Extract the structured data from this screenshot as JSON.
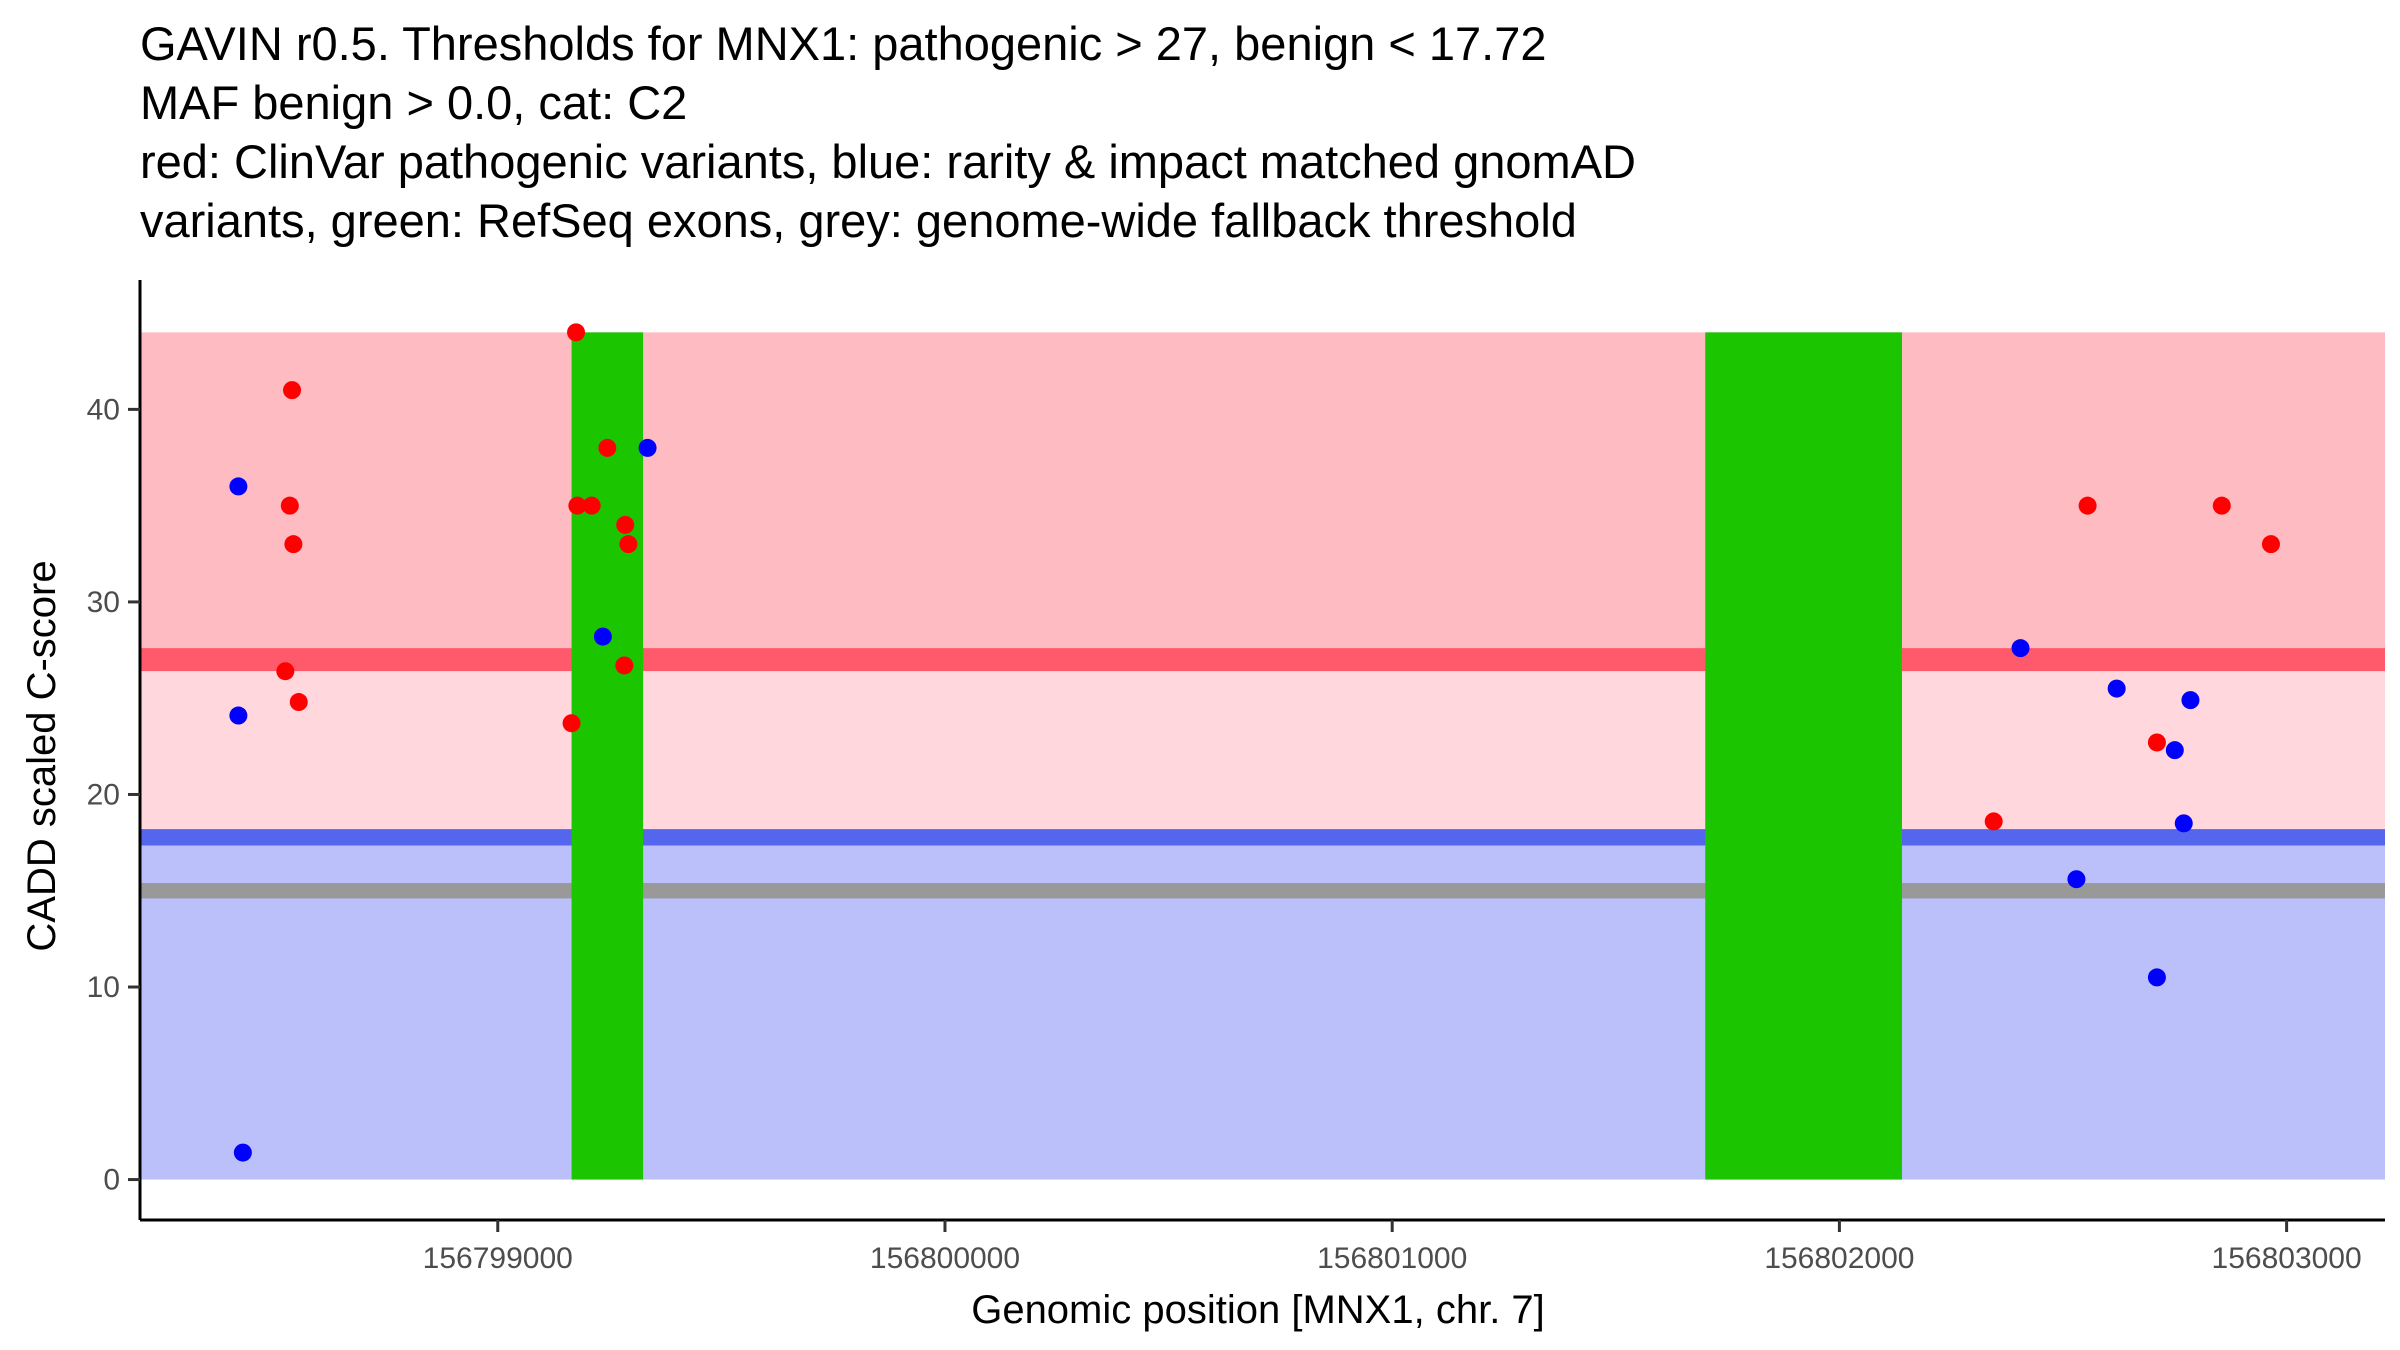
{
  "chart_data": {
    "type": "scatter",
    "title_lines": [
      "GAVIN r0.5. Thresholds for MNX1: pathogenic > 27, benign < 17.72",
      "MAF benign > 0.0, cat: C2",
      "red: ClinVar pathogenic variants, blue: rarity & impact matched gnomAD",
      "variants, green: RefSeq exons, grey: genome-wide fallback threshold"
    ],
    "xlabel": "Genomic position [MNX1, chr. 7]",
    "ylabel": "CADD scaled C-score",
    "xlim": [
      156798200,
      156803220
    ],
    "ylim": [
      -2.1,
      46.2
    ],
    "x_ticks": [
      156799000,
      156800000,
      156801000,
      156802000,
      156803000
    ],
    "x_tick_labels": [
      "156799000",
      "156800000",
      "156801000",
      "156802000",
      "156803000"
    ],
    "y_ticks": [
      0,
      10,
      20,
      30,
      40
    ],
    "y_tick_labels": [
      "0",
      "10",
      "20",
      "30",
      "40"
    ],
    "x_range_shaded": [
      156798200,
      156803220
    ],
    "bands": [
      {
        "name": "pathogenic-region",
        "y0": 27,
        "y1": 44,
        "color": "#ffbbc2"
      },
      {
        "name": "pathogenic-threshold",
        "y0": 26.4,
        "y1": 27.6,
        "color": "#ff5a6c"
      },
      {
        "name": "intermediate-region",
        "y0": 17.72,
        "y1": 26.4,
        "color": "#ffd7dc"
      },
      {
        "name": "benign-threshold",
        "y0": 17.35,
        "y1": 18.2,
        "color": "#5566ee"
      },
      {
        "name": "benign-region",
        "y0": 0,
        "y1": 17.35,
        "color": "#bbc0fb"
      },
      {
        "name": "fallback-threshold",
        "y0": 14.6,
        "y1": 15.4,
        "color": "#999999"
      }
    ],
    "exons": [
      {
        "start": 156799165,
        "end": 156799325,
        "color": "#1bc600"
      },
      {
        "start": 156801700,
        "end": 156802140,
        "color": "#1bc600"
      }
    ],
    "exon_y_range": [
      0,
      44
    ],
    "series": [
      {
        "name": "ClinVar pathogenic variants",
        "color": "#ff0000",
        "points": [
          {
            "x": 156798540,
            "y": 41
          },
          {
            "x": 156798535,
            "y": 35
          },
          {
            "x": 156798543,
            "y": 33
          },
          {
            "x": 156798525,
            "y": 26.4
          },
          {
            "x": 156798555,
            "y": 24.8
          },
          {
            "x": 156799175,
            "y": 44
          },
          {
            "x": 156799178,
            "y": 35
          },
          {
            "x": 156799210,
            "y": 35
          },
          {
            "x": 156799245,
            "y": 38
          },
          {
            "x": 156799285,
            "y": 34
          },
          {
            "x": 156799292,
            "y": 33
          },
          {
            "x": 156799283,
            "y": 26.7
          },
          {
            "x": 156799165,
            "y": 23.7
          },
          {
            "x": 156802555,
            "y": 35
          },
          {
            "x": 156802345,
            "y": 18.6
          },
          {
            "x": 156802710,
            "y": 22.7
          },
          {
            "x": 156802855,
            "y": 35
          },
          {
            "x": 156802965,
            "y": 33
          }
        ]
      },
      {
        "name": "rarity & impact matched gnomAD variants",
        "color": "#0000ff",
        "points": [
          {
            "x": 156798420,
            "y": 36
          },
          {
            "x": 156798420,
            "y": 24.1
          },
          {
            "x": 156798430,
            "y": 1.4
          },
          {
            "x": 156799335,
            "y": 38
          },
          {
            "x": 156799235,
            "y": 28.2
          },
          {
            "x": 156802405,
            "y": 27.6
          },
          {
            "x": 156802620,
            "y": 25.5
          },
          {
            "x": 156802785,
            "y": 24.9
          },
          {
            "x": 156802750,
            "y": 22.3
          },
          {
            "x": 156802770,
            "y": 18.5
          },
          {
            "x": 156802530,
            "y": 15.6
          },
          {
            "x": 156802710,
            "y": 10.5
          }
        ]
      }
    ]
  }
}
